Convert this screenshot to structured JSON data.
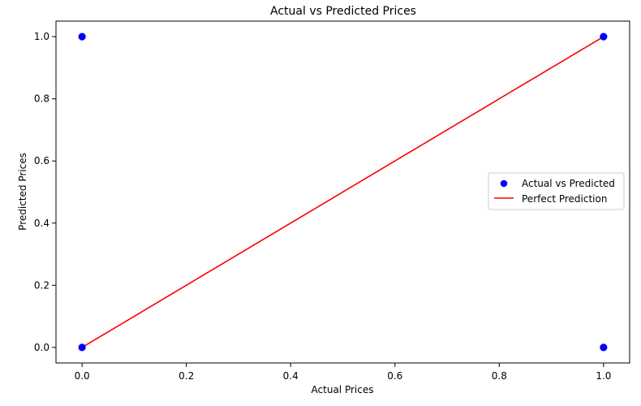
{
  "chart_data": {
    "type": "scatter",
    "title": "Actual vs Predicted Prices",
    "xlabel": "Actual Prices",
    "ylabel": "Predicted Prices",
    "xlim": [
      -0.05,
      1.05
    ],
    "ylim": [
      -0.05,
      1.05
    ],
    "xticks": [
      "0.0",
      "0.2",
      "0.4",
      "0.6",
      "0.8",
      "1.0"
    ],
    "yticks": [
      "0.0",
      "0.2",
      "0.4",
      "0.6",
      "0.8",
      "1.0"
    ],
    "grid": false,
    "legend_position": "center-right",
    "series": [
      {
        "name": "Actual vs Predicted",
        "kind": "scatter",
        "color": "#0000ff",
        "points": [
          {
            "x": 0.0,
            "y": 1.0
          },
          {
            "x": 0.0,
            "y": 0.0
          },
          {
            "x": 1.0,
            "y": 1.0
          },
          {
            "x": 1.0,
            "y": 0.0
          }
        ]
      },
      {
        "name": "Perfect Prediction",
        "kind": "line",
        "color": "#ff0000",
        "points": [
          {
            "x": 0.0,
            "y": 0.0
          },
          {
            "x": 1.0,
            "y": 1.0
          }
        ]
      }
    ]
  }
}
